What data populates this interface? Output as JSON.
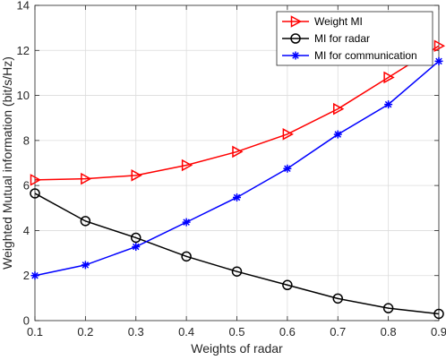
{
  "chart_data": {
    "type": "line",
    "xlabel": "Weights of radar",
    "ylabel": "Weighted Mutual information (bit/s/Hz)",
    "x": [
      0.1,
      0.2,
      0.3,
      0.4,
      0.5,
      0.6,
      0.7,
      0.8,
      0.9
    ],
    "xlim": [
      0.1,
      0.9
    ],
    "ylim": [
      0,
      14
    ],
    "xticks": [
      "0.1",
      "0.2",
      "0.3",
      "0.4",
      "0.5",
      "0.6",
      "0.7",
      "0.8",
      "0.9"
    ],
    "yticks": [
      "0",
      "2",
      "4",
      "6",
      "8",
      "10",
      "12",
      "14"
    ],
    "grid": true,
    "legend_position": "top-right",
    "series": [
      {
        "name": "Weight MI",
        "color": "#ff0000",
        "marker": "triangle-right",
        "values": [
          6.25,
          6.3,
          6.45,
          6.9,
          7.5,
          8.28,
          9.4,
          10.8,
          12.2
        ]
      },
      {
        "name": "MI for radar",
        "color": "#000000",
        "marker": "circle",
        "values": [
          5.65,
          4.42,
          3.68,
          2.85,
          2.18,
          1.58,
          0.98,
          0.55,
          0.3
        ]
      },
      {
        "name": "MI for communication",
        "color": "#0000ff",
        "marker": "asterisk",
        "values": [
          2.0,
          2.47,
          3.28,
          4.37,
          5.47,
          6.75,
          8.27,
          9.6,
          11.52
        ]
      }
    ]
  }
}
